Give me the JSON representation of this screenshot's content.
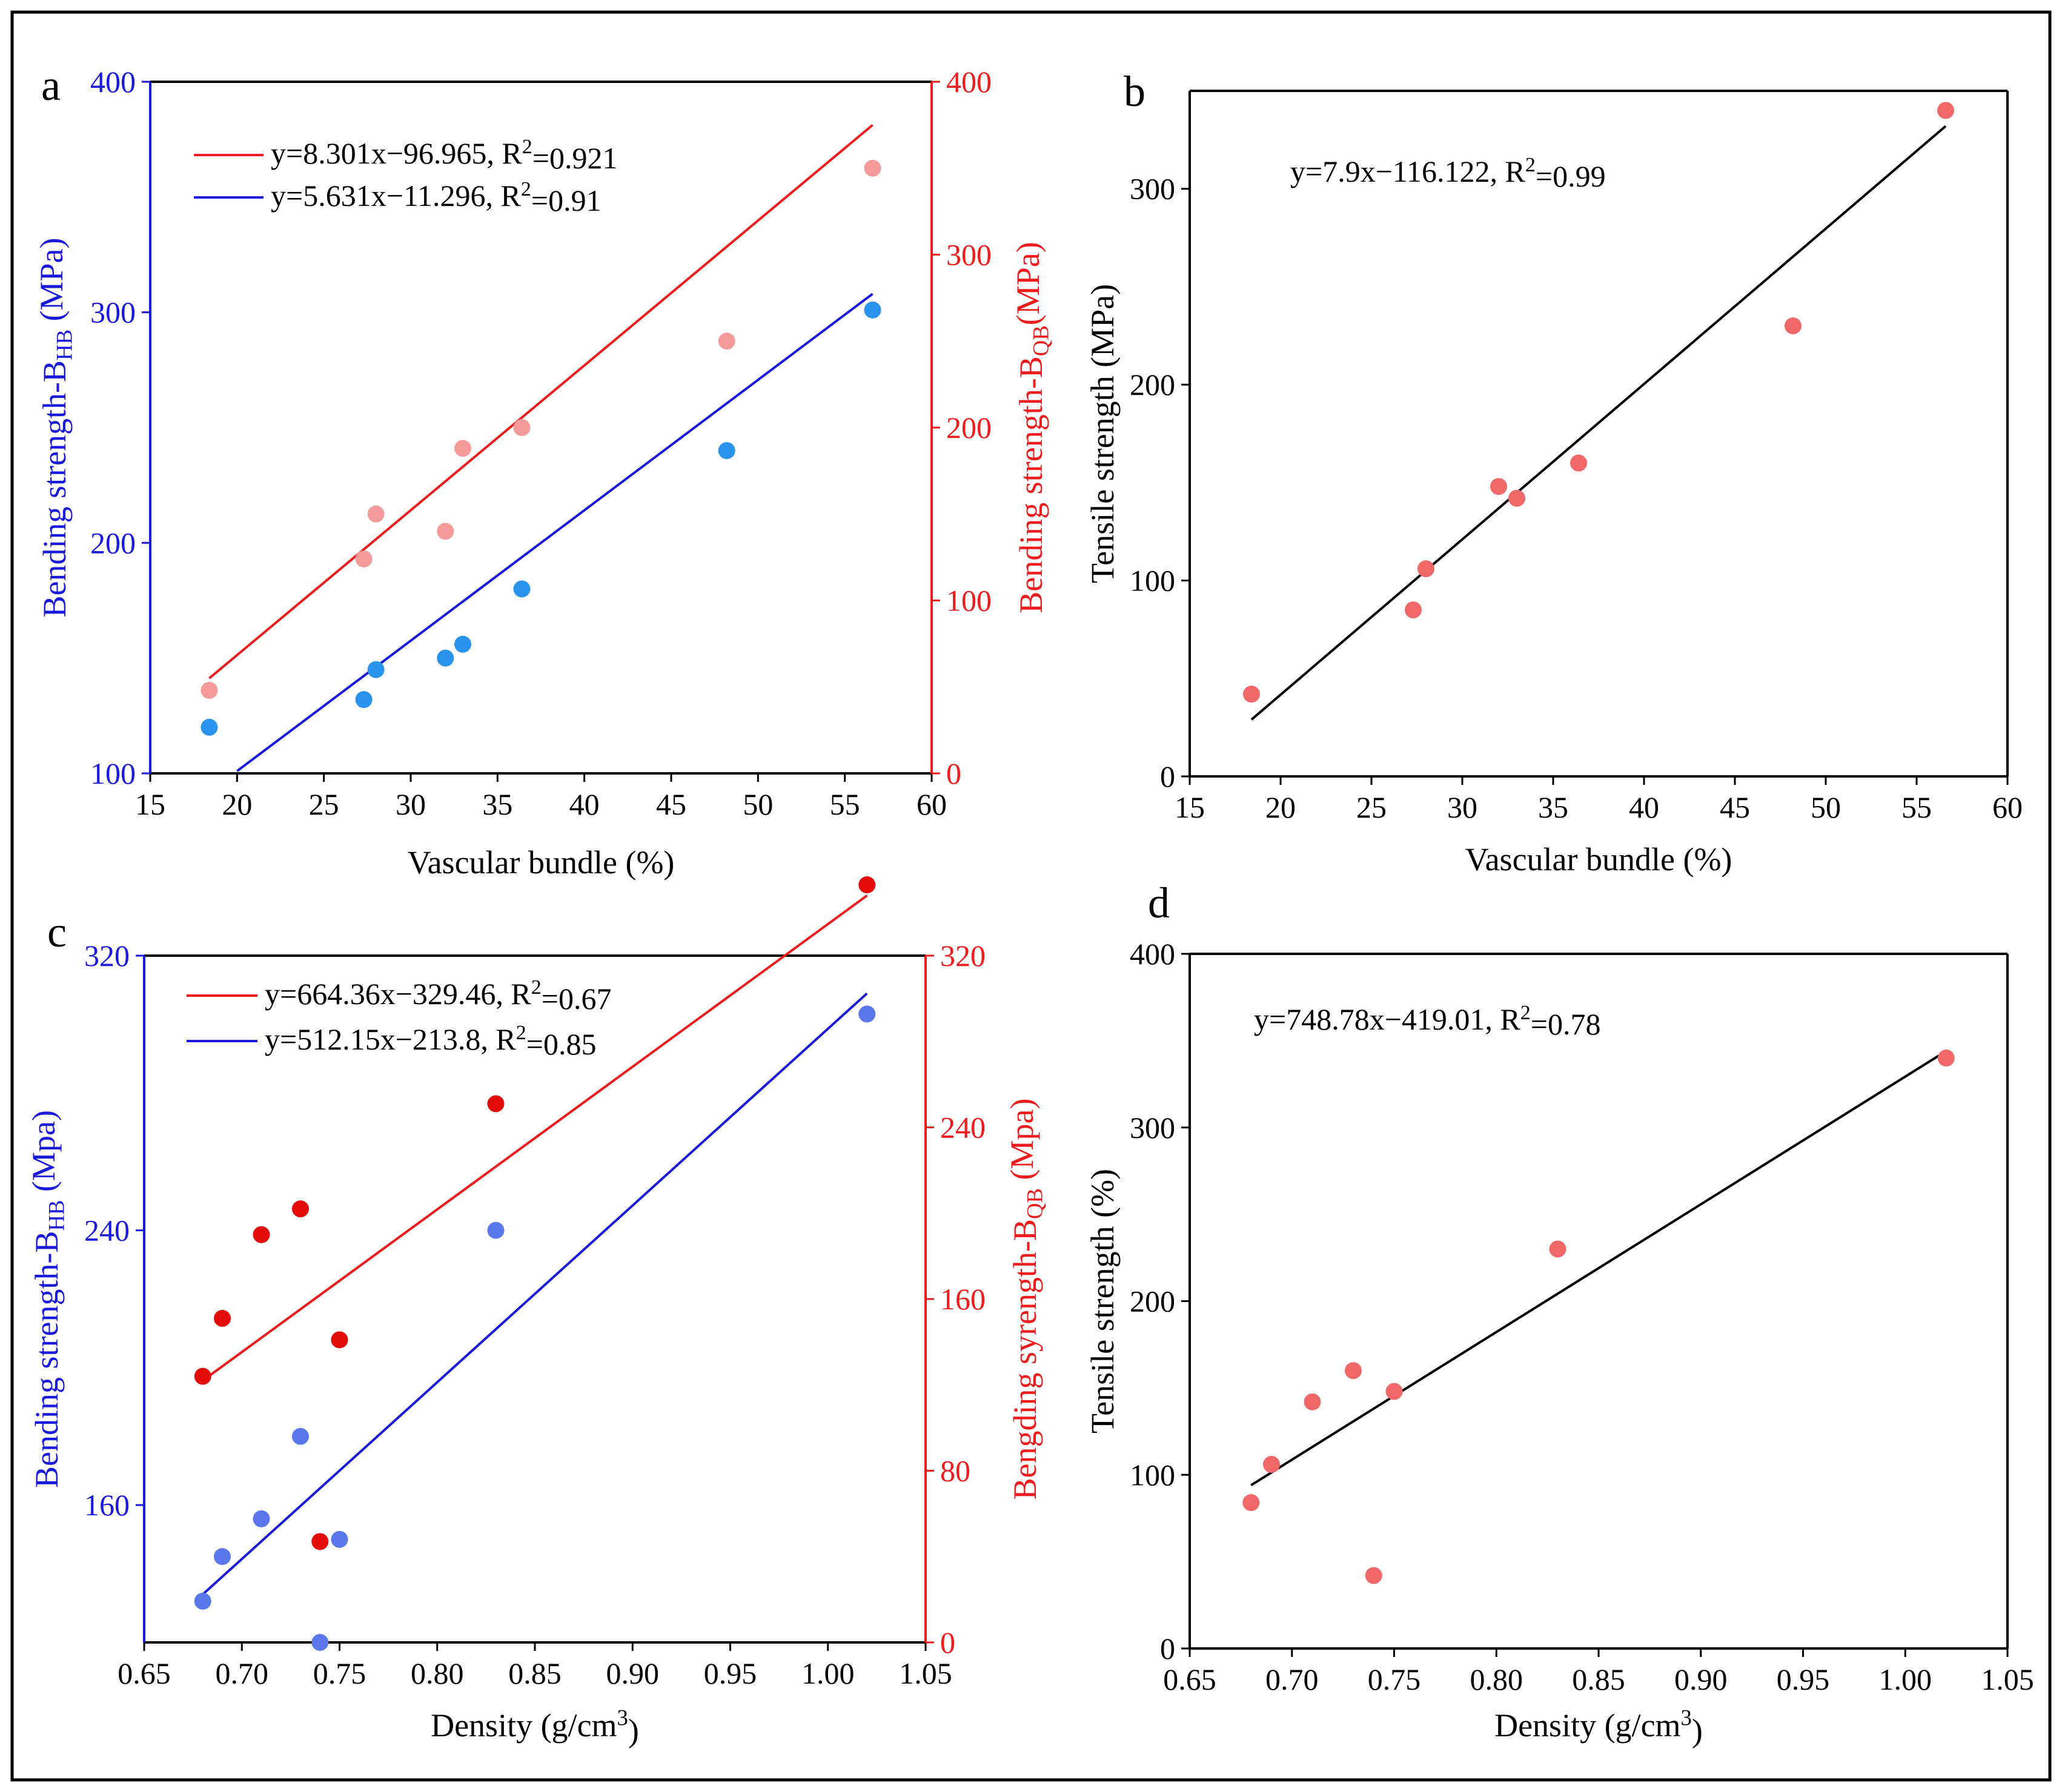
{
  "colors": {
    "red": "#ee1c1c",
    "blue": "#1a1adc",
    "black": "#000000",
    "pink_point": "#f59a9a",
    "blue_point": "#2a93ee",
    "salmon_point": "#f06868",
    "dark_red_point": "#e40b0b",
    "slate_blue_point": "#5a78ec"
  },
  "chart_data": [
    {
      "panel": "a",
      "type": "scatter",
      "xlabel": "Vascular bundle (%)",
      "xlim": [
        15,
        60
      ],
      "xticks": [
        15,
        20,
        25,
        30,
        35,
        40,
        45,
        50,
        55,
        60
      ],
      "ylabel_left": {
        "main": "Bending strength-B",
        "sub": "HB",
        "unit": " (MPa)"
      },
      "ylim_left": [
        100,
        400
      ],
      "yticks_left": [
        100,
        200,
        300,
        400
      ],
      "ylabel_right": {
        "main": "Bending strength-B",
        "sub": "QB",
        "unit": "(MPa)"
      },
      "ylim_right": [
        0,
        400
      ],
      "yticks_right": [
        0,
        100,
        200,
        300,
        400
      ],
      "legend": [
        {
          "text": "y=8.301x−96.965, R",
          "sup": "2",
          "tail": "=0.921",
          "color": "red"
        },
        {
          "text": "y=5.631x−11.296, R",
          "sup": "2",
          "tail": "=0.91",
          "color": "blue"
        }
      ],
      "series": [
        {
          "name": "B_QB",
          "axis": "right",
          "point_color": "pink_point",
          "x": [
            18.4,
            27.3,
            28.0,
            32.0,
            33.0,
            36.4,
            48.2,
            56.6
          ],
          "y": [
            48,
            124,
            150,
            140,
            188,
            200,
            250,
            350
          ]
        },
        {
          "name": "B_HB",
          "axis": "left",
          "point_color": "blue_point",
          "x": [
            18.4,
            27.3,
            28.0,
            32.0,
            33.0,
            36.4,
            48.2,
            56.6
          ],
          "y": [
            120,
            132,
            145,
            150,
            156,
            180,
            240,
            301
          ]
        }
      ],
      "fits": [
        {
          "axis": "right",
          "color": "red",
          "x": [
            18.4,
            56.6
          ],
          "y": [
            55,
            375
          ]
        },
        {
          "axis": "left",
          "color": "blue",
          "x": [
            20.0,
            56.6
          ],
          "y": [
            101,
            308
          ]
        }
      ]
    },
    {
      "panel": "b",
      "type": "scatter",
      "xlabel": "Vascular bundle (%)",
      "xlim": [
        15,
        60
      ],
      "xticks": [
        15,
        20,
        25,
        30,
        35,
        40,
        45,
        50,
        55,
        60
      ],
      "ylabel_left": {
        "main": "Tensile strength (MPa)"
      },
      "ylim_left": [
        0,
        350
      ],
      "yticks_left": [
        0,
        100,
        200,
        300
      ],
      "legend": [
        {
          "text": "y=7.9x−116.122, R",
          "sup": "2",
          "tail": "=0.99",
          "color": "black"
        }
      ],
      "series": [
        {
          "name": "Tensile",
          "axis": "left",
          "point_color": "salmon_point",
          "x": [
            18.4,
            27.3,
            28.0,
            32.0,
            33.0,
            36.4,
            48.2,
            56.6
          ],
          "y": [
            42,
            85,
            106,
            148,
            142,
            160,
            230,
            340
          ]
        }
      ],
      "fits": [
        {
          "axis": "left",
          "color": "black",
          "x": [
            18.4,
            56.6
          ],
          "y": [
            29,
            332
          ]
        }
      ]
    },
    {
      "panel": "c",
      "type": "scatter",
      "xlabel": {
        "main": "Density (g/cm",
        "sup": "3",
        "tail": ")"
      },
      "xlim": [
        0.65,
        1.05
      ],
      "xticks": [
        "0.65",
        "0.70",
        "0.75",
        "0.80",
        "0.85",
        "0.90",
        "0.95",
        "1.00",
        "1.05"
      ],
      "ylabel_left": {
        "main": "Bending strength-B",
        "sub": "HB",
        "unit": " (Mpa)"
      },
      "ylim_left": [
        120,
        320
      ],
      "yticks_left": [
        160,
        240,
        320
      ],
      "ylabel_right": {
        "main": "Bengding syrength-B",
        "sub": "QB",
        "unit": " (Mpa)"
      },
      "ylim_right": [
        0,
        320
      ],
      "yticks_right": [
        0,
        80,
        160,
        240,
        320
      ],
      "legend": [
        {
          "text": "y=664.36x−329.46, R",
          "sup": "2",
          "tail": "=0.67",
          "color": "red"
        },
        {
          "text": "y=512.15x−213.8, R",
          "sup": "2",
          "tail": "=0.85",
          "color": "blue"
        }
      ],
      "series": [
        {
          "name": "B_QB",
          "axis": "right",
          "point_color": "dark_red_point",
          "x": [
            0.68,
            0.69,
            0.71,
            0.73,
            0.74,
            0.75,
            0.83,
            1.02
          ],
          "y": [
            124,
            151,
            190,
            202,
            47,
            141,
            251,
            353
          ]
        },
        {
          "name": "B_HB",
          "axis": "left",
          "point_color": "slate_blue_point",
          "x": [
            0.68,
            0.69,
            0.71,
            0.73,
            0.74,
            0.75,
            0.83,
            1.02
          ],
          "y": [
            132,
            145,
            156,
            180,
            120,
            150,
            240,
            303
          ]
        }
      ],
      "fits": [
        {
          "axis": "right",
          "color": "red",
          "x": [
            0.68,
            1.02
          ],
          "y": [
            122,
            348
          ]
        },
        {
          "axis": "left",
          "color": "blue",
          "x": [
            0.68,
            1.02
          ],
          "y": [
            134,
            309
          ]
        }
      ]
    },
    {
      "panel": "d",
      "type": "scatter",
      "xlabel": {
        "main": "Density (g/cm",
        "sup": "3",
        "tail": ")"
      },
      "xlim": [
        0.65,
        1.05
      ],
      "xticks": [
        "0.65",
        "0.70",
        "0.75",
        "0.80",
        "0.85",
        "0.90",
        "0.95",
        "1.00",
        "1.05"
      ],
      "ylabel_left": {
        "main": "Tensile strength (%)"
      },
      "ylim_left": [
        0,
        400
      ],
      "yticks_left": [
        0,
        100,
        200,
        300,
        400
      ],
      "legend": [
        {
          "text": "y=748.78x−419.01, R",
          "sup": "2",
          "tail": "=0.78",
          "color": "black"
        }
      ],
      "series": [
        {
          "name": "Tensile",
          "axis": "left",
          "point_color": "salmon_point",
          "x": [
            0.68,
            0.69,
            0.71,
            0.73,
            0.74,
            0.75,
            0.83,
            1.02
          ],
          "y": [
            84,
            106,
            142,
            160,
            42,
            148,
            230,
            340
          ]
        }
      ],
      "fits": [
        {
          "axis": "left",
          "color": "black",
          "x": [
            0.68,
            1.02
          ],
          "y": [
            94,
            344
          ]
        }
      ]
    }
  ]
}
